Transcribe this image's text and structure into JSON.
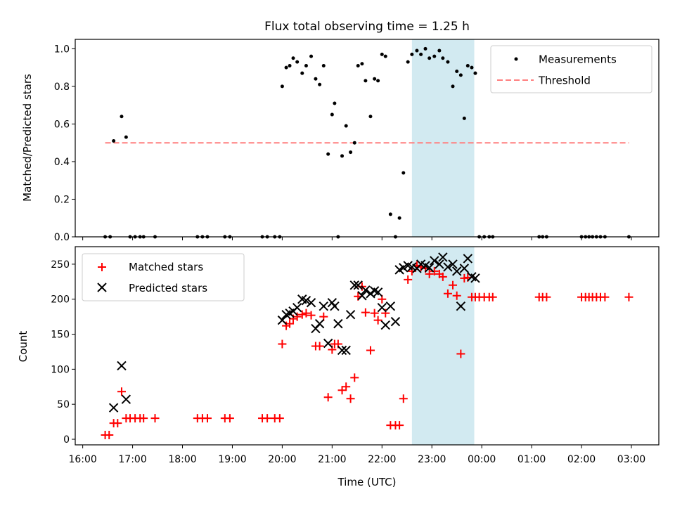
{
  "chart_data": [
    {
      "type": "scatter",
      "title": "Flux total observing time = 1.25 h",
      "xlabel": "",
      "ylabel": "Matched/Predicted stars",
      "xlim": [
        15.85,
        27.55
      ],
      "ylim": [
        0,
        1.05
      ],
      "yticks": [
        0.0,
        0.2,
        0.4,
        0.6,
        0.8,
        1.0
      ],
      "ytick_labels": [
        "0.0",
        "0.2",
        "0.4",
        "0.6",
        "0.8",
        "1.0"
      ],
      "legend_position": "upper-right",
      "shaded_interval": [
        22.6,
        23.85
      ],
      "shade_color": "#add8e6",
      "series": [
        {
          "name": "Measurements",
          "marker": "dot",
          "color": "#000000",
          "x": [
            16.45,
            16.55,
            16.62,
            16.78,
            16.87,
            16.95,
            17.05,
            17.15,
            17.22,
            17.45,
            18.3,
            18.4,
            18.5,
            18.85,
            18.95,
            19.6,
            19.7,
            19.85,
            19.95,
            20.0,
            20.08,
            20.15,
            20.22,
            20.3,
            20.4,
            20.48,
            20.58,
            20.67,
            20.75,
            20.83,
            20.92,
            21.0,
            21.05,
            21.12,
            21.2,
            21.28,
            21.37,
            21.45,
            21.52,
            21.6,
            21.67,
            21.77,
            21.85,
            21.92,
            22.0,
            22.07,
            22.17,
            22.27,
            22.35,
            22.43,
            22.52,
            22.6,
            22.7,
            22.78,
            22.87,
            22.95,
            23.05,
            23.15,
            23.22,
            23.32,
            23.42,
            23.5,
            23.58,
            23.65,
            23.72,
            23.8,
            23.87,
            23.95,
            24.05,
            24.15,
            24.22,
            25.15,
            25.22,
            25.3,
            26.0,
            26.08,
            26.15,
            26.22,
            26.3,
            26.38,
            26.47,
            26.95
          ],
          "y": [
            0.0,
            0.0,
            0.51,
            0.64,
            0.53,
            0.0,
            0.0,
            0.0,
            0.0,
            0.0,
            0.0,
            0.0,
            0.0,
            0.0,
            0.0,
            0.0,
            0.0,
            0.0,
            0.0,
            0.8,
            0.9,
            0.91,
            0.95,
            0.93,
            0.87,
            0.91,
            0.96,
            0.84,
            0.81,
            0.91,
            0.44,
            0.65,
            0.71,
            0.0,
            0.43,
            0.59,
            0.45,
            0.5,
            0.91,
            0.92,
            0.83,
            0.64,
            0.84,
            0.83,
            0.97,
            0.96,
            0.12,
            0.0,
            0.1,
            0.34,
            0.93,
            0.97,
            0.99,
            0.97,
            1.0,
            0.95,
            0.96,
            0.99,
            0.95,
            0.93,
            0.8,
            0.88,
            0.86,
            0.63,
            0.91,
            0.9,
            0.87,
            0.0,
            0.0,
            0.0,
            0.0,
            0.0,
            0.0,
            0.0,
            0.0,
            0.0,
            0.0,
            0.0,
            0.0,
            0.0,
            0.0,
            0.0
          ]
        },
        {
          "name": "Threshold",
          "marker": "dashed-line",
          "color": "#ff7f7f",
          "x": [
            16.45,
            26.95
          ],
          "y": [
            0.5,
            0.5
          ]
        }
      ]
    },
    {
      "type": "scatter",
      "title": "",
      "xlabel": "Time (UTC)",
      "ylabel": "Count",
      "xlim": [
        15.85,
        27.55
      ],
      "ylim": [
        -8,
        275
      ],
      "yticks": [
        0,
        50,
        100,
        150,
        200,
        250
      ],
      "ytick_labels": [
        "0",
        "50",
        "100",
        "150",
        "200",
        "250"
      ],
      "xticks": [
        16,
        17,
        18,
        19,
        20,
        21,
        22,
        23,
        24,
        25,
        26,
        27
      ],
      "xtick_labels": [
        "16:00",
        "17:00",
        "18:00",
        "19:00",
        "20:00",
        "21:00",
        "22:00",
        "23:00",
        "00:00",
        "01:00",
        "02:00",
        "03:00"
      ],
      "legend_position": "upper-left",
      "shaded_interval": [
        22.6,
        23.85
      ],
      "shade_color": "#add8e6",
      "series": [
        {
          "name": "Matched stars",
          "marker": "plus",
          "color": "#ff0000",
          "x": [
            16.45,
            16.53,
            16.62,
            16.7,
            16.78,
            16.87,
            16.95,
            17.05,
            17.15,
            17.22,
            17.45,
            18.3,
            18.4,
            18.5,
            18.85,
            18.95,
            19.6,
            19.7,
            19.85,
            19.95,
            20.0,
            20.08,
            20.15,
            20.22,
            20.3,
            20.4,
            20.48,
            20.58,
            20.67,
            20.75,
            20.83,
            20.92,
            21.0,
            21.05,
            21.12,
            21.2,
            21.28,
            21.37,
            21.45,
            21.52,
            21.6,
            21.67,
            21.77,
            21.85,
            21.92,
            22.0,
            22.07,
            22.17,
            22.27,
            22.35,
            22.43,
            22.52,
            22.6,
            22.7,
            22.78,
            22.87,
            22.95,
            23.05,
            23.15,
            23.22,
            23.32,
            23.42,
            23.5,
            23.58,
            23.65,
            23.72,
            23.8,
            23.87,
            23.95,
            24.05,
            24.15,
            24.22,
            25.15,
            25.22,
            25.3,
            26.0,
            26.08,
            26.15,
            26.22,
            26.3,
            26.38,
            26.47,
            26.95
          ],
          "y": [
            6,
            6,
            23,
            23,
            68,
            30,
            30,
            30,
            30,
            30,
            30,
            30,
            30,
            30,
            30,
            30,
            30,
            30,
            30,
            30,
            136,
            162,
            165,
            172,
            175,
            178,
            180,
            177,
            133,
            133,
            175,
            60,
            128,
            136,
            136,
            70,
            75,
            58,
            88,
            204,
            218,
            181,
            127,
            180,
            170,
            200,
            180,
            20,
            20,
            20,
            58,
            228,
            240,
            248,
            246,
            244,
            236,
            240,
            236,
            232,
            208,
            220,
            205,
            122,
            230,
            231,
            203,
            203,
            203,
            203,
            203,
            203,
            203,
            203,
            203,
            203,
            203,
            203,
            203,
            203,
            203,
            203,
            203
          ]
        },
        {
          "name": "Predicted stars",
          "marker": "x",
          "color": "#000000",
          "x": [
            16.62,
            16.78,
            16.87,
            20.0,
            20.08,
            20.15,
            20.22,
            20.3,
            20.4,
            20.48,
            20.58,
            20.67,
            20.75,
            20.83,
            20.92,
            21.0,
            21.05,
            21.12,
            21.2,
            21.28,
            21.37,
            21.45,
            21.52,
            21.6,
            21.67,
            21.77,
            21.85,
            21.92,
            22.0,
            22.07,
            22.17,
            22.27,
            22.35,
            22.43,
            22.52,
            22.6,
            22.7,
            22.78,
            22.87,
            22.95,
            23.05,
            23.15,
            23.22,
            23.32,
            23.42,
            23.5,
            23.58,
            23.65,
            23.72,
            23.8,
            23.87
          ],
          "y": [
            45,
            105,
            57,
            170,
            178,
            180,
            183,
            188,
            200,
            198,
            195,
            158,
            165,
            190,
            137,
            195,
            190,
            165,
            127,
            127,
            178,
            220,
            220,
            205,
            213,
            208,
            212,
            210,
            188,
            163,
            190,
            168,
            242,
            245,
            248,
            246,
            244,
            250,
            248,
            245,
            255,
            250,
            260,
            246,
            250,
            240,
            190,
            244,
            258,
            232,
            230
          ]
        }
      ]
    }
  ]
}
